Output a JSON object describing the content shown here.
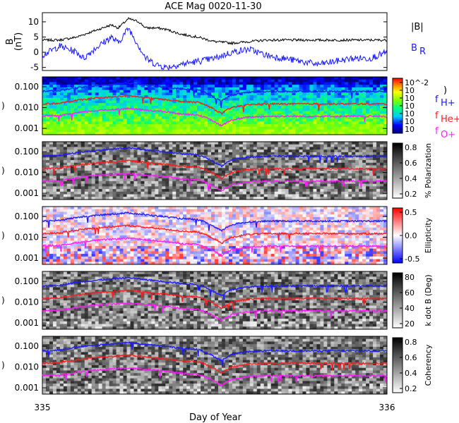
{
  "title": "ACE Mag 0020-11-30",
  "xlabel": "Day of Year",
  "x_ticks": [
    "335",
    "336"
  ],
  "colors": {
    "black": "#000000",
    "blue": "#1a1aff",
    "red": "#ff1a1a",
    "magenta": "#ff1aff"
  },
  "chart_data": [
    {
      "type": "line",
      "panel": "magnetic field",
      "ylabel": "B (nT)",
      "ylim": [
        -6,
        13
      ],
      "y_ticks": [
        "10",
        "5",
        "0",
        "-5"
      ],
      "x_range": [
        335,
        336
      ],
      "series": [
        {
          "name": "|B|",
          "color": "#000000",
          "x": [
            335.0,
            335.05,
            335.1,
            335.15,
            335.2,
            335.22,
            335.25,
            335.28,
            335.3,
            335.33,
            335.36,
            335.4,
            335.45,
            335.5,
            335.55,
            335.6,
            335.65,
            335.7,
            335.75,
            335.8,
            335.85,
            335.9,
            335.95,
            336.0
          ],
          "values": [
            4,
            4,
            5,
            7,
            9,
            8,
            11,
            10,
            8,
            8,
            7.5,
            6,
            5,
            3.5,
            3,
            3.5,
            4,
            4,
            4,
            4,
            4,
            4,
            4,
            4
          ]
        },
        {
          "name": "B_R",
          "color": "#1a1aff",
          "x": [
            335.0,
            335.05,
            335.1,
            335.12,
            335.15,
            335.2,
            335.22,
            335.25,
            335.28,
            335.3,
            335.33,
            335.36,
            335.4,
            335.45,
            335.5,
            335.55,
            335.6,
            335.65,
            335.7,
            335.75,
            335.8,
            335.85,
            335.9,
            335.95,
            336.0
          ],
          "values": [
            -1,
            2,
            0,
            -2,
            1,
            5,
            3,
            8,
            2,
            -2,
            -4,
            -5,
            -4,
            -3,
            -2,
            0,
            1,
            -1,
            -2,
            -3,
            -4,
            -3,
            -2,
            -2,
            0
          ]
        }
      ]
    },
    {
      "type": "heatmap",
      "panel": "power",
      "ylabel": "",
      "y_ticks": [
        "0.100",
        "0.010",
        "0.001"
      ],
      "colorbar_ticks": [
        "10^-2",
        "10",
        "10",
        "10",
        "10",
        "10",
        "10"
      ],
      "lines": [
        "f_H+",
        "f_He+",
        "f_O+"
      ]
    },
    {
      "type": "heatmap",
      "panel": "% Polarization",
      "y_ticks": [
        "0.100",
        "0.010",
        "0.001"
      ],
      "colorbar_label": "% Polarization",
      "colorbar_ticks": [
        "0.8",
        "0.6",
        "0.4",
        "0.2"
      ]
    },
    {
      "type": "heatmap",
      "panel": "Ellipticity",
      "y_ticks": [
        "0.100",
        "0.010",
        "0.001"
      ],
      "colorbar_label": "Ellipticity",
      "colorbar_ticks": [
        "0.5",
        "0.0",
        "-0.5"
      ]
    },
    {
      "type": "heatmap",
      "panel": "k dot B",
      "y_ticks": [
        "0.100",
        "0.010",
        "0.001"
      ],
      "colorbar_label": "k dot B (Deg)",
      "colorbar_ticks": [
        "80",
        "60",
        "40",
        "20"
      ]
    },
    {
      "type": "heatmap",
      "panel": "Coherency",
      "y_ticks": [
        "0.100",
        "0.010",
        "0.001"
      ],
      "colorbar_label": "Coherency",
      "colorbar_ticks": [
        "0.8",
        "0.6",
        "0.4",
        "0.2"
      ]
    }
  ],
  "gyro_lines": {
    "x": [
      335.0,
      335.05,
      335.1,
      335.15,
      335.2,
      335.25,
      335.3,
      335.35,
      335.4,
      335.45,
      335.5,
      335.52,
      335.55,
      335.6,
      335.65,
      335.7,
      335.75,
      335.8,
      335.85,
      335.9,
      335.95,
      336.0
    ],
    "f_H+": [
      0.06,
      0.065,
      0.09,
      0.11,
      0.13,
      0.15,
      0.12,
      0.1,
      0.08,
      0.07,
      0.03,
      0.02,
      0.04,
      0.055,
      0.06,
      0.06,
      0.06,
      0.06,
      0.06,
      0.06,
      0.06,
      0.06
    ],
    "f_He+": [
      0.015,
      0.016,
      0.022,
      0.028,
      0.032,
      0.037,
      0.03,
      0.025,
      0.02,
      0.018,
      0.008,
      0.005,
      0.01,
      0.014,
      0.015,
      0.015,
      0.015,
      0.015,
      0.015,
      0.015,
      0.015,
      0.015
    ],
    "f_O+": [
      0.004,
      0.004,
      0.0055,
      0.007,
      0.008,
      0.009,
      0.0075,
      0.0065,
      0.005,
      0.0045,
      0.002,
      0.0013,
      0.0025,
      0.0035,
      0.0038,
      0.0038,
      0.0038,
      0.0038,
      0.0038,
      0.0038,
      0.0038,
      0.0038
    ]
  },
  "legend": {
    "b_mag": "|B|",
    "b_r": "B",
    "b_r_sub": "R",
    "fh": "f",
    "fh_sub": "H+",
    "fhe": "f",
    "fhe_sub": "He+",
    "fo": "f",
    "fo_sub": "O+",
    "paren": ")"
  },
  "panel_ylabel_fragment": ")"
}
